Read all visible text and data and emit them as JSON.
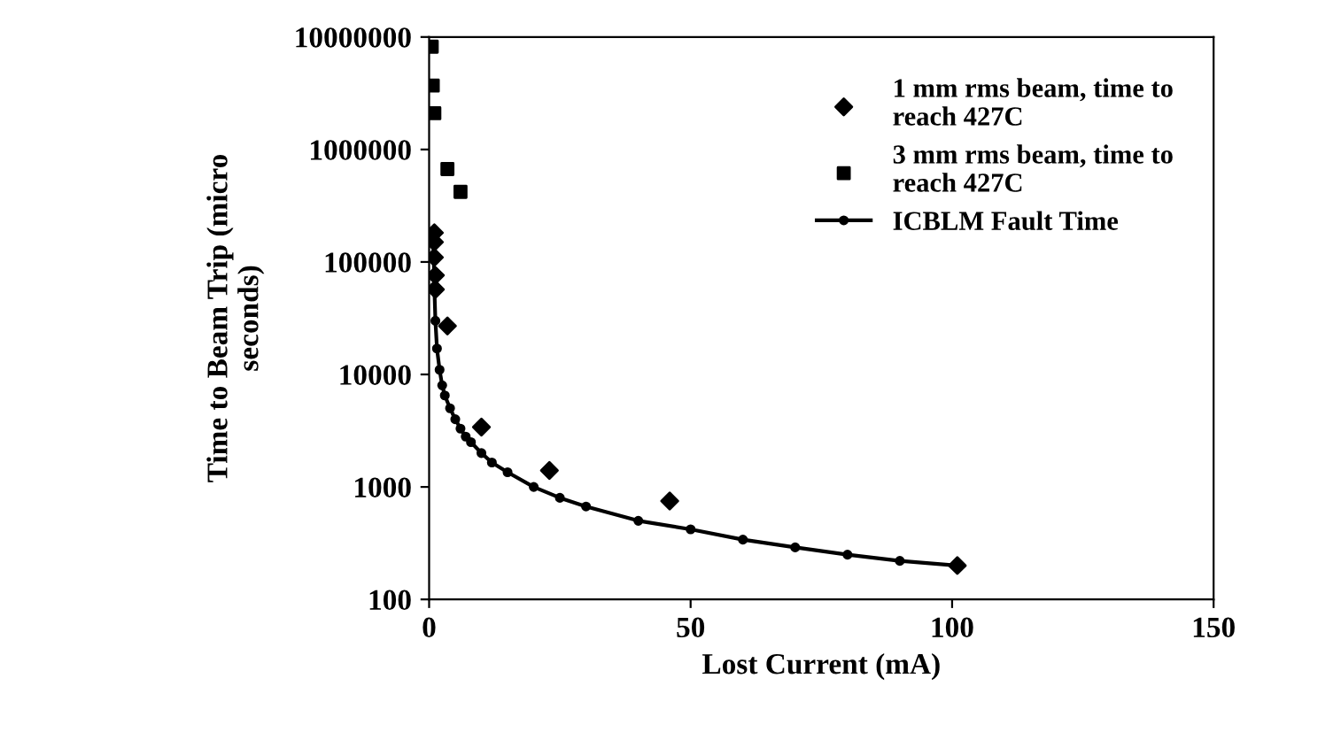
{
  "chart_data": {
    "type": "scatter",
    "xlabel": "Lost Current (mA)",
    "ylabel": "Time to Beam Trip (micro\nseconds)",
    "log": "y",
    "xlim": [
      0,
      150
    ],
    "xticks": [
      0,
      50,
      100,
      150
    ],
    "ylim": [
      100,
      10000000
    ],
    "yticks": [
      100,
      1000,
      10000,
      100000,
      1000000,
      10000000
    ],
    "grid": false,
    "legend": "top right",
    "series": [
      {
        "name": "1 mm rms beam, time to\nreach 427C",
        "marker": "diamond",
        "color": "#000000",
        "x": [
          1,
          1,
          1,
          1.2,
          1.2,
          3.5,
          10,
          23,
          46,
          101
        ],
        "values": [
          182000,
          150000,
          110000,
          76000,
          57000,
          27000,
          3400,
          1400,
          750,
          200
        ]
      },
      {
        "name": "3 mm rms beam, time to\nreach 427C",
        "marker": "square",
        "color": "#000000",
        "x": [
          0.5,
          0.7,
          1,
          3.5,
          6
        ],
        "values": [
          8200000,
          3700000,
          2100000,
          670000,
          420000
        ]
      },
      {
        "name": "ICBLM Fault Time",
        "type": "line",
        "marker": "circle",
        "line_style": "solid",
        "color": "#000000",
        "x": [
          0.8,
          1,
          1.2,
          1.5,
          2,
          2.5,
          3,
          4,
          5,
          6,
          7,
          8,
          10,
          12,
          15,
          20,
          25,
          30,
          40,
          50,
          60,
          70,
          80,
          90,
          101
        ],
        "values": [
          180000,
          60000,
          30000,
          17000,
          11000,
          8000,
          6500,
          5000,
          4000,
          3300,
          2800,
          2500,
          2000,
          1650,
          1350,
          1000,
          800,
          670,
          500,
          420,
          340,
          290,
          250,
          220,
          200
        ]
      }
    ]
  }
}
